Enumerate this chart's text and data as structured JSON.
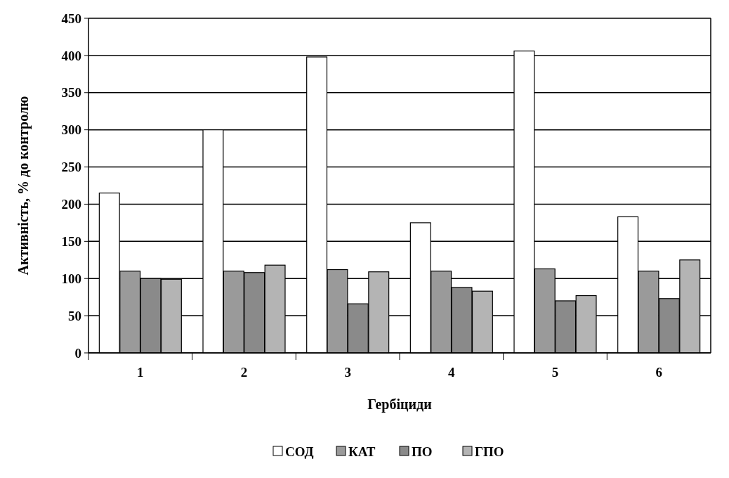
{
  "chart_data": {
    "type": "bar",
    "xlabel": "Гербіциди",
    "ylabel": "Активність, % до контролю",
    "categories": [
      "1",
      "2",
      "3",
      "4",
      "5",
      "6"
    ],
    "series": [
      {
        "name": "СОД",
        "color": "#ffffff",
        "values": [
          215,
          300,
          398,
          175,
          406,
          183
        ]
      },
      {
        "name": "КАТ",
        "color": "#9a9a9a",
        "values": [
          110,
          110,
          112,
          110,
          113,
          110
        ]
      },
      {
        "name": "ПО",
        "color": "#8a8a8a",
        "values": [
          100,
          108,
          66,
          88,
          70,
          73
        ]
      },
      {
        "name": "ГПО",
        "color": "#b4b4b4",
        "values": [
          99,
          118,
          109,
          83,
          77,
          125
        ]
      }
    ],
    "ylim": [
      0,
      450
    ],
    "yticks": [
      0,
      50,
      100,
      150,
      200,
      250,
      300,
      350,
      400,
      450
    ],
    "grid": "y",
    "legend": "bottom"
  }
}
